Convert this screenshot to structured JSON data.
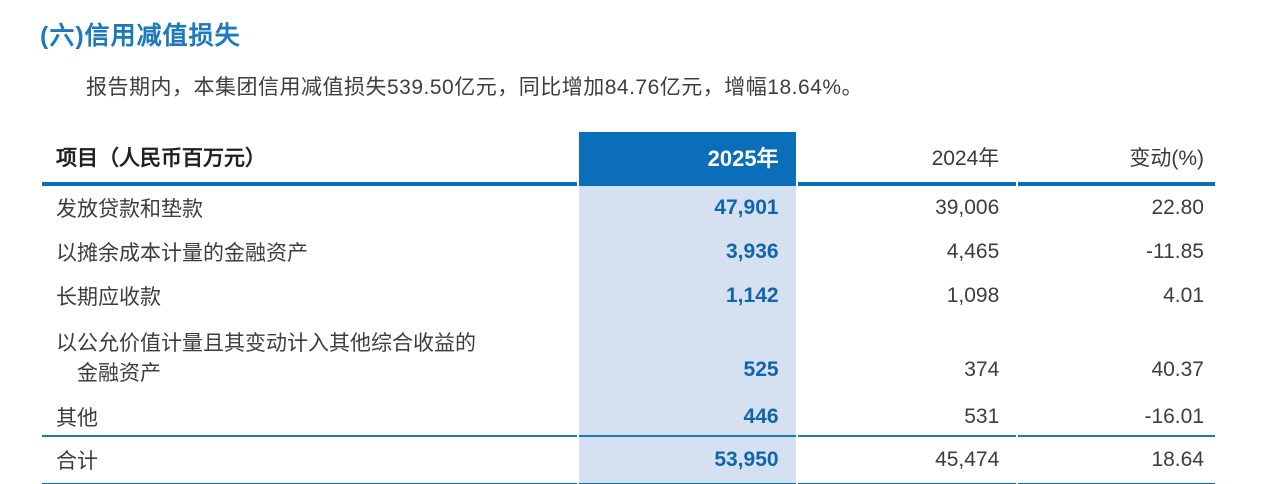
{
  "section": {
    "title": "(六)信用减值损失",
    "paragraph": "报告期内，本集团信用减值损失539.50亿元，同比增加84.76亿元，增幅18.64%。"
  },
  "table": {
    "headers": {
      "item": "项目（人民币百万元）",
      "y2025": "2025年",
      "y2024": "2024年",
      "change": "变动(%)"
    },
    "rows": [
      {
        "label": "发放贷款和垫款",
        "y2025": "47,901",
        "y2024": "39,006",
        "change": "22.80"
      },
      {
        "label": "以摊余成本计量的金融资产",
        "y2025": "3,936",
        "y2024": "4,465",
        "change": "-11.85"
      },
      {
        "label": "长期应收款",
        "y2025": "1,142",
        "y2024": "1,098",
        "change": "4.01"
      },
      {
        "label": "以公允价值计量且其变动计入其他综合收益的",
        "label2": "金融资产",
        "y2025": "525",
        "y2024": "374",
        "change": "40.37"
      },
      {
        "label": "其他",
        "y2025": "446",
        "y2024": "531",
        "change": "-16.01"
      }
    ],
    "total": {
      "label": "合计",
      "y2025": "53,950",
      "y2024": "45,474",
      "change": "18.64"
    }
  },
  "colors": {
    "accent_blue": "#0a6fb8",
    "highlight_column_blue": "#d5e0f1",
    "value_blue": "#1166ab",
    "title_blue": "#1b79bd"
  }
}
